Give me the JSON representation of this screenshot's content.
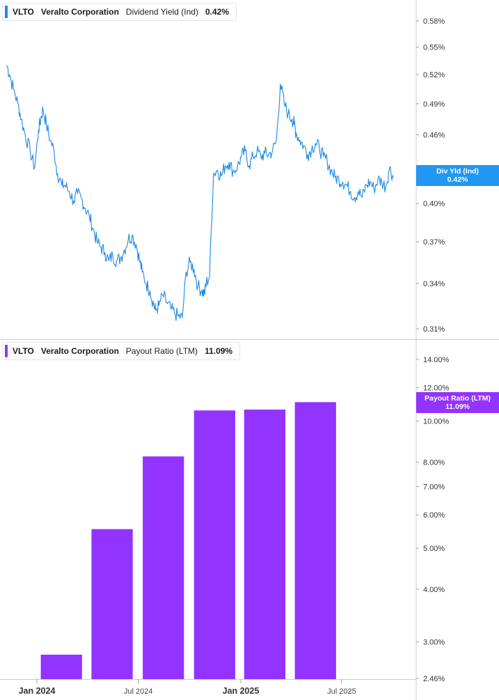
{
  "top_panel": {
    "ticker": "VLTO",
    "company": "Veralto Corporation",
    "metric": "Dividend Yield (Ind)",
    "value": "0.42%",
    "tag_label": "Div Yld (Ind)",
    "tag_value": "0.42%"
  },
  "bottom_panel": {
    "ticker": "VLTO",
    "company": "Veralto Corporation",
    "metric": "Payout Ratio (LTM)",
    "value": "11.09%",
    "tag_label": "Payout Ratio (LTM)",
    "tag_value": "11.09%"
  },
  "colors": {
    "line": "#1e88e5",
    "bar": "#9333ff",
    "tag_top": "#2196f3",
    "tag_bottom": "#9333ff",
    "grid": "#e3e6ea"
  },
  "x_ticks": [
    {
      "label": "Jan 2024",
      "date": "2024-01-01",
      "major": true
    },
    {
      "label": "Jul 2024",
      "date": "2024-07-01",
      "major": false
    },
    {
      "label": "Jan 2025",
      "date": "2025-01-01",
      "major": true
    },
    {
      "label": "Jul 2025",
      "date": "2025-07-01",
      "major": false
    }
  ],
  "chart_data": [
    {
      "type": "line",
      "title": "Dividend Yield (Ind)",
      "yscale": "log",
      "ylim": [
        0.3,
        0.605
      ],
      "y_ticks": [
        "0.58%",
        "0.55%",
        "0.52%",
        "0.49%",
        "0.46%",
        "0.43%",
        "0.40%",
        "0.37%",
        "0.34%",
        "0.31%"
      ],
      "y_tick_values": [
        0.58,
        0.55,
        0.52,
        0.49,
        0.46,
        0.43,
        0.4,
        0.37,
        0.34,
        0.31
      ],
      "last_value": 0.42,
      "series": [
        {
          "name": "Dividend Yield (Ind)",
          "x": [
            "2023-11-08",
            "2023-11-13",
            "2023-11-20",
            "2023-11-28",
            "2023-12-04",
            "2023-12-11",
            "2023-12-20",
            "2023-12-28",
            "2024-01-04",
            "2024-01-08",
            "2024-01-12",
            "2024-01-18",
            "2024-01-25",
            "2024-02-01",
            "2024-02-07",
            "2024-02-15",
            "2024-02-20",
            "2024-02-28",
            "2024-03-07",
            "2024-03-14",
            "2024-03-21",
            "2024-03-28",
            "2024-04-04",
            "2024-04-11",
            "2024-04-18",
            "2024-04-25",
            "2024-05-02",
            "2024-05-09",
            "2024-05-16",
            "2024-05-23",
            "2024-05-30",
            "2024-06-06",
            "2024-06-13",
            "2024-06-20",
            "2024-06-27",
            "2024-07-03",
            "2024-07-08",
            "2024-07-15",
            "2024-07-22",
            "2024-07-29",
            "2024-08-01",
            "2024-08-07",
            "2024-08-14",
            "2024-08-21",
            "2024-08-28",
            "2024-09-04",
            "2024-09-11",
            "2024-09-18",
            "2024-09-25",
            "2024-10-02",
            "2024-10-09",
            "2024-10-16",
            "2024-10-23",
            "2024-10-28",
            "2024-10-31",
            "2024-11-06",
            "2024-11-13",
            "2024-11-20",
            "2024-11-27",
            "2024-12-04",
            "2024-12-11",
            "2024-12-18",
            "2024-12-26",
            "2025-01-02",
            "2025-01-09",
            "2025-01-16",
            "2025-01-23",
            "2025-01-30",
            "2025-02-06",
            "2025-02-13",
            "2025-02-20",
            "2025-02-27",
            "2025-03-06",
            "2025-03-13",
            "2025-03-20",
            "2025-03-27",
            "2025-04-03",
            "2025-04-07",
            "2025-04-10",
            "2025-04-17",
            "2025-04-24",
            "2025-05-01",
            "2025-05-08",
            "2025-05-15",
            "2025-05-22",
            "2025-05-29",
            "2025-06-05",
            "2025-06-12",
            "2025-06-19",
            "2025-06-26",
            "2025-07-03",
            "2025-07-10",
            "2025-07-17",
            "2025-07-24",
            "2025-07-31",
            "2025-08-07",
            "2025-08-14",
            "2025-08-21",
            "2025-08-28",
            "2025-09-04",
            "2025-09-11",
            "2025-09-18",
            "2025-09-25",
            "2025-10-02"
          ],
          "values": [
            0.53,
            0.52,
            0.505,
            0.49,
            0.475,
            0.46,
            0.445,
            0.43,
            0.465,
            0.475,
            0.485,
            0.47,
            0.455,
            0.445,
            0.425,
            0.415,
            0.415,
            0.41,
            0.402,
            0.408,
            0.404,
            0.396,
            0.39,
            0.38,
            0.37,
            0.366,
            0.362,
            0.356,
            0.36,
            0.356,
            0.358,
            0.364,
            0.372,
            0.375,
            0.368,
            0.357,
            0.348,
            0.34,
            0.335,
            0.325,
            0.322,
            0.325,
            0.332,
            0.327,
            0.323,
            0.32,
            0.318,
            0.317,
            0.348,
            0.355,
            0.35,
            0.338,
            0.335,
            0.333,
            0.34,
            0.345,
            0.425,
            0.428,
            0.423,
            0.432,
            0.435,
            0.427,
            0.431,
            0.44,
            0.445,
            0.432,
            0.44,
            0.445,
            0.44,
            0.443,
            0.442,
            0.445,
            0.455,
            0.51,
            0.49,
            0.48,
            0.475,
            0.47,
            0.462,
            0.455,
            0.45,
            0.442,
            0.447,
            0.452,
            0.448,
            0.44,
            0.436,
            0.428,
            0.422,
            0.42,
            0.418,
            0.415,
            0.41,
            0.405,
            0.41,
            0.405,
            0.415,
            0.418,
            0.412,
            0.42,
            0.418,
            0.414,
            0.43,
            0.422
          ]
        }
      ]
    },
    {
      "type": "bar",
      "title": "Payout Ratio (LTM)",
      "yscale": "log",
      "ylim": [
        2.46,
        15.0
      ],
      "y_ticks": [
        "14.00%",
        "12.00%",
        "10.00%",
        "8.00%",
        "7.00%",
        "6.00%",
        "5.00%",
        "4.00%",
        "3.00%",
        "2.46%"
      ],
      "y_tick_values": [
        14.0,
        12.0,
        10.0,
        8.0,
        7.0,
        6.0,
        5.0,
        4.0,
        3.0,
        2.46
      ],
      "last_value": 11.09,
      "series": [
        {
          "name": "Payout Ratio (LTM)",
          "x": [
            "2024-03-31",
            "2024-06-30",
            "2024-09-30",
            "2024-12-31",
            "2025-03-31",
            "2025-06-30"
          ],
          "values": [
            2.8,
            5.55,
            8.25,
            10.6,
            10.65,
            11.09
          ]
        }
      ]
    }
  ]
}
